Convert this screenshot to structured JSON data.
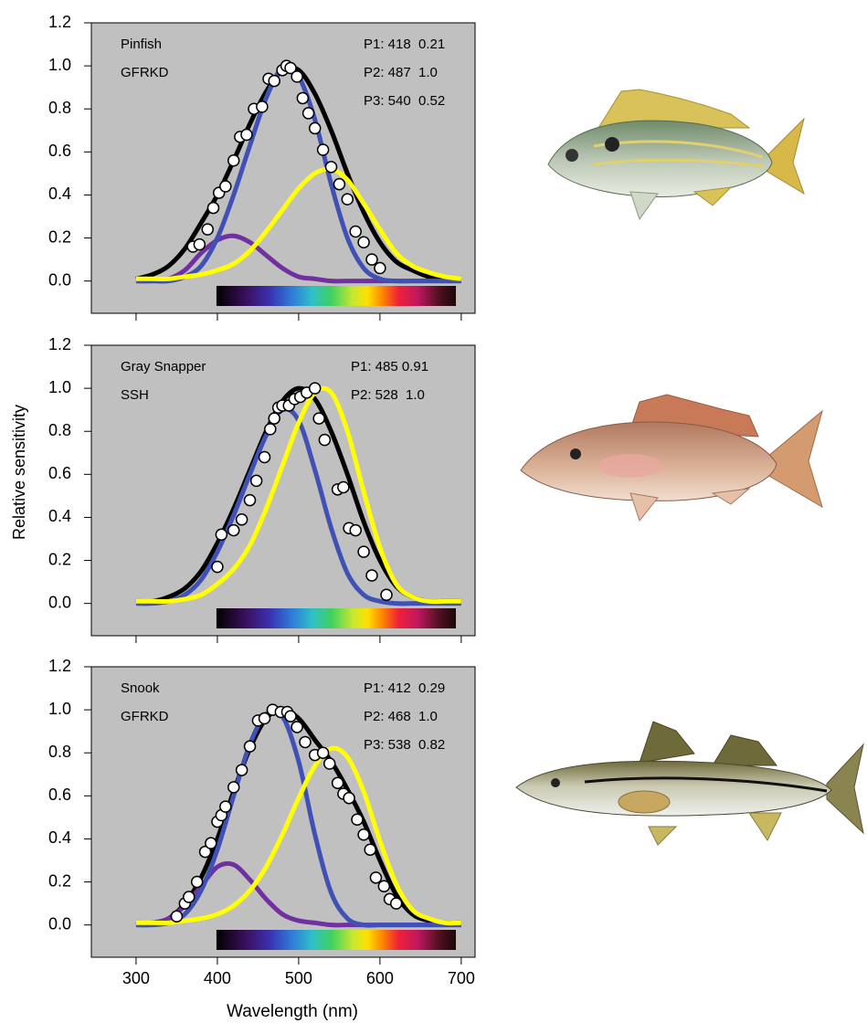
{
  "chart_data": [
    {
      "type": "line",
      "title": "Pinfish",
      "subtitle": "GFRKD",
      "annotations": [
        "P1: 418  0.21",
        "P2: 487  1.0",
        "P3: 540  0.52"
      ],
      "background": "#c0c0c0",
      "x": [
        300,
        320,
        340,
        360,
        380,
        400,
        420,
        440,
        460,
        480,
        500,
        520,
        540,
        560,
        580,
        600,
        620,
        640,
        660,
        680,
        700
      ],
      "series": [
        {
          "color": "#000000",
          "values": [
            0.01,
            0.03,
            0.07,
            0.15,
            0.27,
            0.4,
            0.56,
            0.73,
            0.88,
            0.98,
            0.98,
            0.87,
            0.7,
            0.5,
            0.32,
            0.18,
            0.09,
            0.05,
            0.02,
            0.01,
            0.01
          ]
        },
        {
          "color": "#7030a0",
          "values": [
            0,
            0,
            0.01,
            0.05,
            0.13,
            0.19,
            0.21,
            0.18,
            0.12,
            0.06,
            0.02,
            0.01,
            0,
            0,
            0,
            0,
            0,
            0,
            0,
            0,
            0
          ]
        },
        {
          "color": "#3f51b5",
          "values": [
            0,
            0,
            0,
            0.02,
            0.07,
            0.2,
            0.4,
            0.63,
            0.85,
            0.99,
            0.95,
            0.75,
            0.45,
            0.2,
            0.06,
            0.01,
            0,
            0,
            0,
            0,
            0
          ]
        },
        {
          "color": "#ffff00",
          "values": [
            0.01,
            0.01,
            0.01,
            0.02,
            0.03,
            0.05,
            0.08,
            0.14,
            0.23,
            0.33,
            0.43,
            0.5,
            0.52,
            0.47,
            0.36,
            0.24,
            0.13,
            0.07,
            0.04,
            0.02,
            0.01
          ]
        }
      ],
      "points": {
        "x": [
          370,
          378,
          388,
          395,
          402,
          410,
          420,
          428,
          436,
          445,
          455,
          463,
          470,
          480,
          485,
          490,
          498,
          505,
          512,
          520,
          530,
          540,
          550,
          560,
          570,
          580,
          590,
          600
        ],
        "values": [
          0.16,
          0.17,
          0.24,
          0.34,
          0.41,
          0.44,
          0.56,
          0.67,
          0.68,
          0.8,
          0.81,
          0.94,
          0.93,
          0.98,
          1.0,
          0.99,
          0.95,
          0.85,
          0.78,
          0.71,
          0.61,
          0.53,
          0.45,
          0.38,
          0.23,
          0.18,
          0.1,
          0.06
        ]
      },
      "xlim": [
        245,
        717
      ],
      "ylim": [
        -0.15,
        1.2
      ],
      "xticks": [
        300,
        400,
        500,
        600,
        700
      ],
      "xtick_labels": false,
      "yticks": [
        {
          "value": 0,
          "label": "0.0"
        },
        0.2,
        0.4,
        0.6,
        0.8,
        {
          "value": 1,
          "label": "1.0"
        },
        1.2
      ]
    },
    {
      "type": "line",
      "title": "Gray Snapper",
      "subtitle": "SSH",
      "annotations": [
        "P1: 485 0.91",
        "P2: 528  1.0"
      ],
      "background": "#c0c0c0",
      "ylabel": "Relative sensitivity",
      "x": [
        300,
        320,
        340,
        360,
        380,
        400,
        420,
        440,
        460,
        480,
        500,
        520,
        540,
        560,
        580,
        600,
        620,
        640,
        660,
        680,
        700
      ],
      "series": [
        {
          "color": "#000000",
          "values": [
            0.01,
            0.01,
            0.03,
            0.07,
            0.15,
            0.28,
            0.44,
            0.62,
            0.8,
            0.94,
            1.0,
            0.95,
            0.8,
            0.6,
            0.38,
            0.2,
            0.08,
            0.03,
            0.01,
            0.01,
            0.01
          ]
        },
        {
          "color": "#3f51b5",
          "values": [
            0,
            0,
            0.01,
            0.04,
            0.11,
            0.24,
            0.41,
            0.6,
            0.78,
            0.9,
            0.85,
            0.62,
            0.35,
            0.14,
            0.04,
            0.01,
            0,
            0,
            0,
            0,
            0
          ]
        },
        {
          "color": "#ffff00",
          "values": [
            0.01,
            0.01,
            0.01,
            0.02,
            0.04,
            0.09,
            0.16,
            0.27,
            0.44,
            0.64,
            0.84,
            0.98,
            0.98,
            0.8,
            0.52,
            0.26,
            0.09,
            0.03,
            0.01,
            0.01,
            0.01
          ]
        }
      ],
      "points": {
        "x": [
          400,
          405,
          420,
          430,
          440,
          448,
          458,
          465,
          470,
          475,
          480,
          488,
          495,
          502,
          510,
          520,
          525,
          532,
          548,
          555,
          562,
          570,
          580,
          590,
          608
        ],
        "values": [
          0.17,
          0.32,
          0.34,
          0.39,
          0.48,
          0.57,
          0.68,
          0.81,
          0.86,
          0.91,
          0.92,
          0.92,
          0.95,
          0.96,
          0.98,
          1.0,
          0.86,
          0.76,
          0.53,
          0.54,
          0.35,
          0.34,
          0.24,
          0.13,
          0.04
        ]
      },
      "xlim": [
        245,
        717
      ],
      "ylim": [
        -0.15,
        1.2
      ],
      "xticks": [
        300,
        400,
        500,
        600,
        700
      ],
      "xtick_labels": false,
      "yticks": [
        {
          "value": 0,
          "label": "0.0"
        },
        0.2,
        0.4,
        0.6,
        0.8,
        {
          "value": 1,
          "label": "1.0"
        },
        1.2
      ]
    },
    {
      "type": "line",
      "title": "Snook",
      "subtitle": "GFRKD",
      "annotations": [
        "P1: 412  0.29",
        "P2: 468  1.0",
        "P3: 538  0.82"
      ],
      "background": "#c0c0c0",
      "xlabel": "Wavelength (nm)",
      "x": [
        300,
        320,
        340,
        360,
        380,
        400,
        420,
        440,
        460,
        480,
        500,
        520,
        540,
        560,
        580,
        600,
        620,
        640,
        660,
        680,
        700
      ],
      "series": [
        {
          "color": "#000000",
          "values": [
            0.01,
            0.01,
            0.03,
            0.1,
            0.22,
            0.4,
            0.62,
            0.82,
            0.96,
            1.0,
            0.96,
            0.86,
            0.76,
            0.63,
            0.48,
            0.3,
            0.14,
            0.05,
            0.02,
            0.01,
            0.01
          ]
        },
        {
          "color": "#7030a0",
          "values": [
            0,
            0.01,
            0.03,
            0.09,
            0.18,
            0.27,
            0.28,
            0.21,
            0.12,
            0.05,
            0.02,
            0.01,
            0,
            0,
            0,
            0,
            0,
            0,
            0,
            0,
            0
          ]
        },
        {
          "color": "#3f51b5",
          "values": [
            0,
            0,
            0.01,
            0.05,
            0.16,
            0.35,
            0.6,
            0.84,
            0.98,
            0.97,
            0.76,
            0.42,
            0.15,
            0.03,
            0,
            0,
            0,
            0,
            0,
            0,
            0
          ]
        },
        {
          "color": "#ffff00",
          "values": [
            0.01,
            0.01,
            0.01,
            0.02,
            0.03,
            0.05,
            0.09,
            0.16,
            0.27,
            0.42,
            0.59,
            0.74,
            0.82,
            0.78,
            0.62,
            0.39,
            0.19,
            0.07,
            0.03,
            0.01,
            0.01
          ]
        }
      ],
      "points": {
        "x": [
          350,
          360,
          365,
          375,
          385,
          392,
          400,
          405,
          410,
          420,
          430,
          440,
          450,
          458,
          468,
          478,
          486,
          490,
          498,
          508,
          520,
          530,
          538,
          548,
          555,
          562,
          572,
          580,
          588,
          595,
          605,
          612,
          620
        ],
        "values": [
          0.04,
          0.1,
          0.13,
          0.2,
          0.34,
          0.38,
          0.48,
          0.51,
          0.55,
          0.64,
          0.72,
          0.83,
          0.95,
          0.96,
          1.0,
          0.99,
          0.99,
          0.97,
          0.92,
          0.85,
          0.79,
          0.8,
          0.75,
          0.66,
          0.61,
          0.59,
          0.49,
          0.42,
          0.35,
          0.22,
          0.18,
          0.12,
          0.1
        ]
      },
      "xlim": [
        245,
        717
      ],
      "ylim": [
        -0.15,
        1.2
      ],
      "xticks": [
        300,
        400,
        500,
        600,
        700
      ],
      "xtick_labels": true,
      "yticks": [
        {
          "value": 0,
          "label": "0.0"
        },
        0.2,
        0.4,
        0.6,
        0.8,
        {
          "value": 1,
          "label": "1.0"
        },
        1.2
      ]
    }
  ]
}
